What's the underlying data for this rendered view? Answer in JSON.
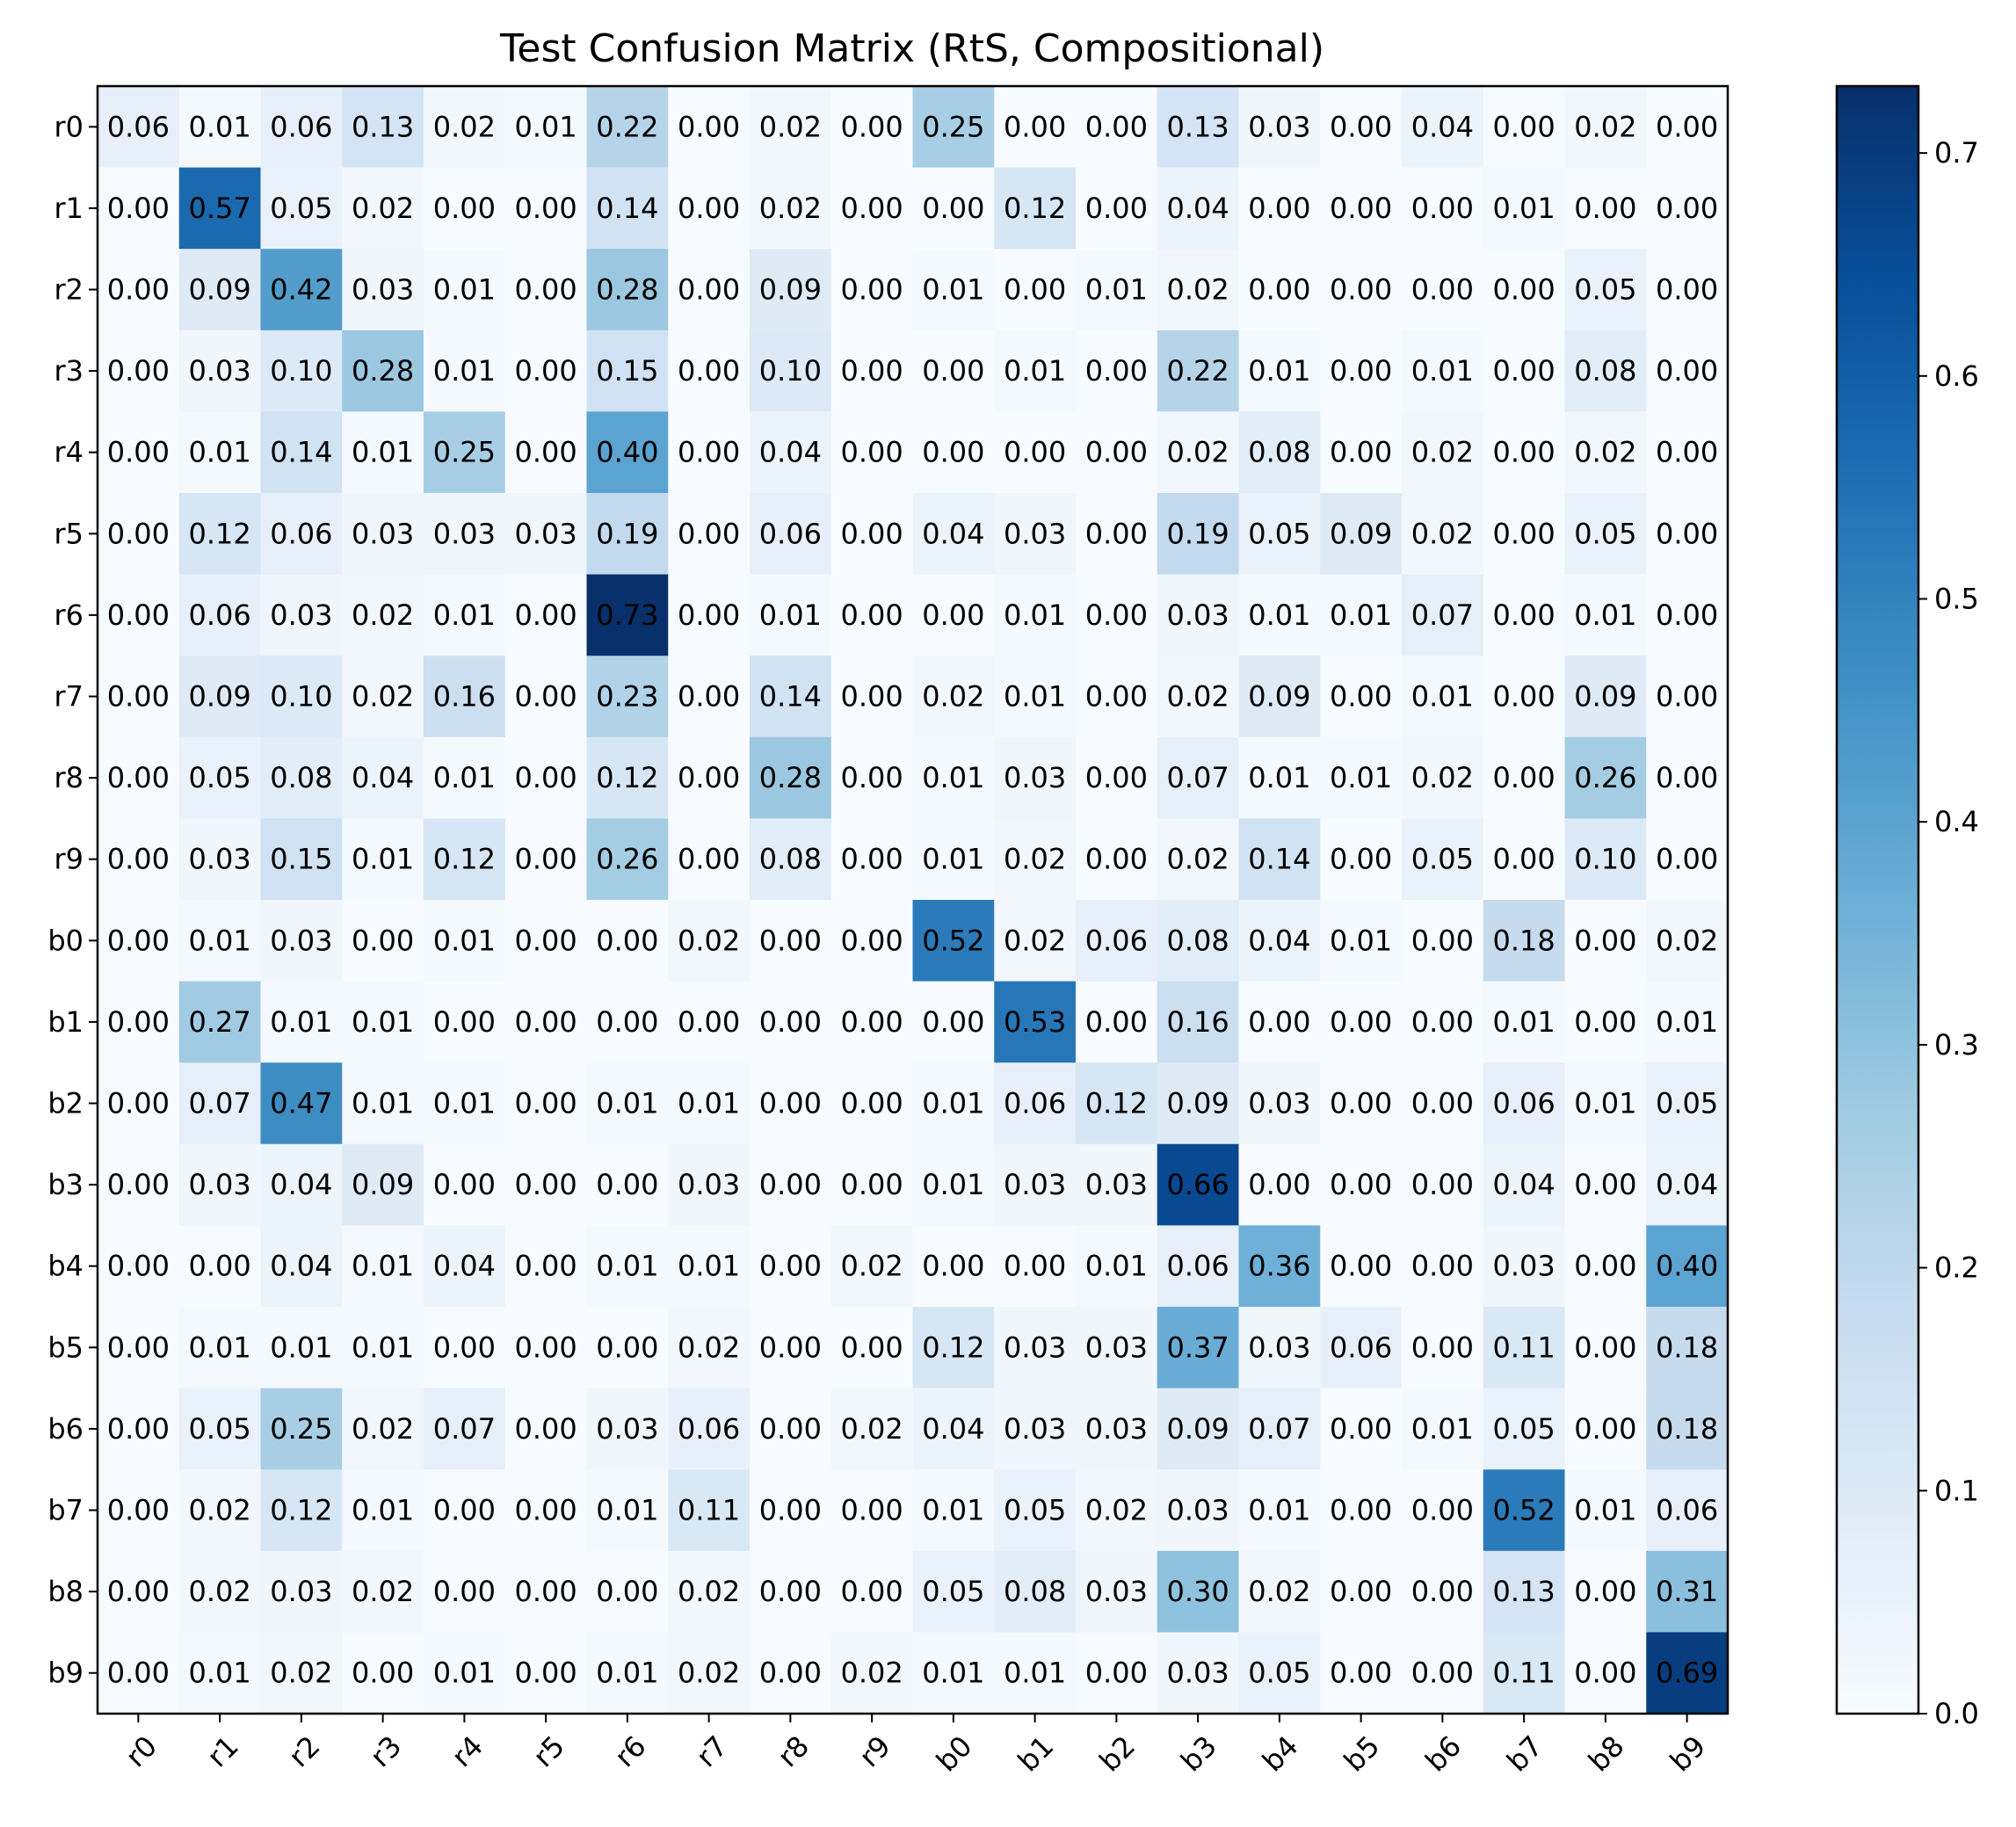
{
  "chart_data": {
    "type": "heatmap",
    "title": "Test Confusion Matrix (RtS, Compositional)",
    "xlabel": "",
    "ylabel": "",
    "x_categories": [
      "r0",
      "r1",
      "r2",
      "r3",
      "r4",
      "r5",
      "r6",
      "r7",
      "r8",
      "r9",
      "b0",
      "b1",
      "b2",
      "b3",
      "b4",
      "b5",
      "b6",
      "b7",
      "b8",
      "b9"
    ],
    "y_categories": [
      "r0",
      "r1",
      "r2",
      "r3",
      "r4",
      "r5",
      "r6",
      "r7",
      "r8",
      "r9",
      "b0",
      "b1",
      "b2",
      "b3",
      "b4",
      "b5",
      "b6",
      "b7",
      "b8",
      "b9"
    ],
    "values": [
      [
        0.06,
        0.01,
        0.06,
        0.13,
        0.02,
        0.01,
        0.22,
        0.0,
        0.02,
        0.0,
        0.25,
        0.0,
        0.0,
        0.13,
        0.03,
        0.0,
        0.04,
        0.0,
        0.02,
        0.0
      ],
      [
        0.0,
        0.57,
        0.05,
        0.02,
        0.0,
        0.0,
        0.14,
        0.0,
        0.02,
        0.0,
        0.0,
        0.12,
        0.0,
        0.04,
        0.0,
        0.0,
        0.0,
        0.01,
        0.0,
        0.0
      ],
      [
        0.0,
        0.09,
        0.42,
        0.03,
        0.01,
        0.0,
        0.28,
        0.0,
        0.09,
        0.0,
        0.01,
        0.0,
        0.01,
        0.02,
        0.0,
        0.0,
        0.0,
        0.0,
        0.05,
        0.0
      ],
      [
        0.0,
        0.03,
        0.1,
        0.28,
        0.01,
        0.0,
        0.15,
        0.0,
        0.1,
        0.0,
        0.0,
        0.01,
        0.0,
        0.22,
        0.01,
        0.0,
        0.01,
        0.0,
        0.08,
        0.0
      ],
      [
        0.0,
        0.01,
        0.14,
        0.01,
        0.25,
        0.0,
        0.4,
        0.0,
        0.04,
        0.0,
        0.0,
        0.0,
        0.0,
        0.02,
        0.08,
        0.0,
        0.02,
        0.0,
        0.02,
        0.0
      ],
      [
        0.0,
        0.12,
        0.06,
        0.03,
        0.03,
        0.03,
        0.19,
        0.0,
        0.06,
        0.0,
        0.04,
        0.03,
        0.0,
        0.19,
        0.05,
        0.09,
        0.02,
        0.0,
        0.05,
        0.0
      ],
      [
        0.0,
        0.06,
        0.03,
        0.02,
        0.01,
        0.0,
        0.73,
        0.0,
        0.01,
        0.0,
        0.0,
        0.01,
        0.0,
        0.03,
        0.01,
        0.01,
        0.07,
        0.0,
        0.01,
        0.0
      ],
      [
        0.0,
        0.09,
        0.1,
        0.02,
        0.16,
        0.0,
        0.23,
        0.0,
        0.14,
        0.0,
        0.02,
        0.01,
        0.0,
        0.02,
        0.09,
        0.0,
        0.01,
        0.0,
        0.09,
        0.0
      ],
      [
        0.0,
        0.05,
        0.08,
        0.04,
        0.01,
        0.0,
        0.12,
        0.0,
        0.28,
        0.0,
        0.01,
        0.03,
        0.0,
        0.07,
        0.01,
        0.01,
        0.02,
        0.0,
        0.26,
        0.0
      ],
      [
        0.0,
        0.03,
        0.15,
        0.01,
        0.12,
        0.0,
        0.26,
        0.0,
        0.08,
        0.0,
        0.01,
        0.02,
        0.0,
        0.02,
        0.14,
        0.0,
        0.05,
        0.0,
        0.1,
        0.0
      ],
      [
        0.0,
        0.01,
        0.03,
        0.0,
        0.01,
        0.0,
        0.0,
        0.02,
        0.0,
        0.0,
        0.52,
        0.02,
        0.06,
        0.08,
        0.04,
        0.01,
        0.0,
        0.18,
        0.0,
        0.02
      ],
      [
        0.0,
        0.27,
        0.01,
        0.01,
        0.0,
        0.0,
        0.0,
        0.0,
        0.0,
        0.0,
        0.0,
        0.53,
        0.0,
        0.16,
        0.0,
        0.0,
        0.0,
        0.01,
        0.0,
        0.01
      ],
      [
        0.0,
        0.07,
        0.47,
        0.01,
        0.01,
        0.0,
        0.01,
        0.01,
        0.0,
        0.0,
        0.01,
        0.06,
        0.12,
        0.09,
        0.03,
        0.0,
        0.0,
        0.06,
        0.01,
        0.05
      ],
      [
        0.0,
        0.03,
        0.04,
        0.09,
        0.0,
        0.0,
        0.0,
        0.03,
        0.0,
        0.0,
        0.01,
        0.03,
        0.03,
        0.66,
        0.0,
        0.0,
        0.0,
        0.04,
        0.0,
        0.04
      ],
      [
        0.0,
        0.0,
        0.04,
        0.01,
        0.04,
        0.0,
        0.01,
        0.01,
        0.0,
        0.02,
        0.0,
        0.0,
        0.01,
        0.06,
        0.36,
        0.0,
        0.0,
        0.03,
        0.0,
        0.4
      ],
      [
        0.0,
        0.01,
        0.01,
        0.01,
        0.0,
        0.0,
        0.0,
        0.02,
        0.0,
        0.0,
        0.12,
        0.03,
        0.03,
        0.37,
        0.03,
        0.06,
        0.0,
        0.11,
        0.0,
        0.18
      ],
      [
        0.0,
        0.05,
        0.25,
        0.02,
        0.07,
        0.0,
        0.03,
        0.06,
        0.0,
        0.02,
        0.04,
        0.03,
        0.03,
        0.09,
        0.07,
        0.0,
        0.01,
        0.05,
        0.0,
        0.18
      ],
      [
        0.0,
        0.02,
        0.12,
        0.01,
        0.0,
        0.0,
        0.01,
        0.11,
        0.0,
        0.0,
        0.01,
        0.05,
        0.02,
        0.03,
        0.01,
        0.0,
        0.0,
        0.52,
        0.01,
        0.06
      ],
      [
        0.0,
        0.02,
        0.03,
        0.02,
        0.0,
        0.0,
        0.0,
        0.02,
        0.0,
        0.0,
        0.05,
        0.08,
        0.03,
        0.3,
        0.02,
        0.0,
        0.0,
        0.13,
        0.0,
        0.31
      ],
      [
        0.0,
        0.01,
        0.02,
        0.0,
        0.01,
        0.0,
        0.01,
        0.02,
        0.0,
        0.02,
        0.01,
        0.01,
        0.0,
        0.03,
        0.05,
        0.0,
        0.0,
        0.11,
        0.0,
        0.69
      ]
    ],
    "value_format": "0.00",
    "colormap": "Blues",
    "color_range": [
      0.0,
      0.73
    ],
    "colorbar_ticks": [
      "0.0",
      "0.1",
      "0.2",
      "0.3",
      "0.4",
      "0.5",
      "0.6",
      "0.7"
    ],
    "grid": false,
    "legend": "colorbar-right"
  }
}
